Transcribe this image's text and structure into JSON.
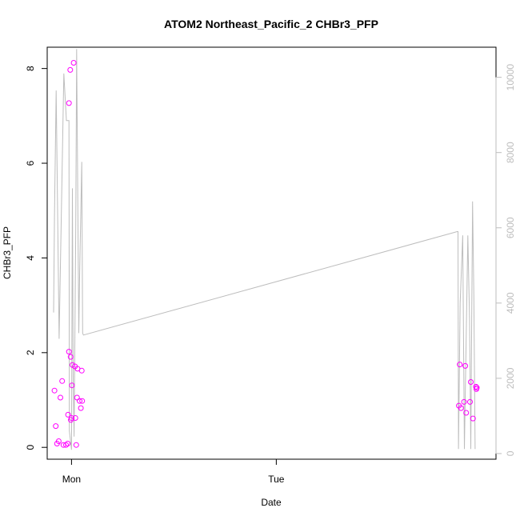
{
  "chart_data": {
    "type": "scatter",
    "title": "ATOM2 Northeast_Pacific_2 CHBr3_PFP",
    "xlabel": "Date",
    "ylabel": "CHBr3_PFP",
    "y2label": "",
    "x_axis": {
      "min_hours": -2.85,
      "max_hours": 49.75,
      "ticks": [
        {
          "label": "Mon",
          "hours": 0
        },
        {
          "label": "Tue",
          "hours": 24
        }
      ]
    },
    "y_axis": {
      "ylim": [
        -0.25,
        8.45
      ],
      "ticks": [
        {
          "label": "0",
          "value": 0
        },
        {
          "label": "2",
          "value": 2
        },
        {
          "label": "4",
          "value": 4
        },
        {
          "label": "6",
          "value": 6
        },
        {
          "label": "8",
          "value": 8
        }
      ]
    },
    "y2_axis": {
      "ylim": [
        -150,
        10800
      ],
      "ticks": [
        {
          "label": "0",
          "value": 0
        },
        {
          "label": "2000",
          "value": 2000
        },
        {
          "label": "4000",
          "value": 4000
        },
        {
          "label": "6000",
          "value": 6000
        },
        {
          "label": "8000",
          "value": 8000
        },
        {
          "label": "10000",
          "value": 10000
        }
      ]
    },
    "series": [
      {
        "type": "scatter",
        "axis": "left",
        "color": "#ff00ff",
        "marker": "open-circle",
        "points": [
          {
            "x": -2.0,
            "y": 1.2
          },
          {
            "x": -1.85,
            "y": 0.45
          },
          {
            "x": -1.7,
            "y": 0.08
          },
          {
            "x": -1.5,
            "y": 0.13
          },
          {
            "x": -1.3,
            "y": 1.05
          },
          {
            "x": -1.1,
            "y": 1.4
          },
          {
            "x": -0.95,
            "y": 0.05
          },
          {
            "x": -0.65,
            "y": 0.05
          },
          {
            "x": -0.45,
            "y": 0.08
          },
          {
            "x": -0.4,
            "y": 0.69
          },
          {
            "x": -0.3,
            "y": 2.02
          },
          {
            "x": -0.3,
            "y": 7.27
          },
          {
            "x": -0.15,
            "y": 7.97
          },
          {
            "x": -0.1,
            "y": 1.91
          },
          {
            "x": -0.08,
            "y": 0.58
          },
          {
            "x": 0.0,
            "y": 0.62
          },
          {
            "x": 0.05,
            "y": 1.31
          },
          {
            "x": 0.1,
            "y": 1.74
          },
          {
            "x": 0.25,
            "y": 8.12
          },
          {
            "x": 0.4,
            "y": 1.71
          },
          {
            "x": 0.45,
            "y": 0.62
          },
          {
            "x": 0.55,
            "y": 0.05
          },
          {
            "x": 0.65,
            "y": 1.05
          },
          {
            "x": 0.7,
            "y": 1.66
          },
          {
            "x": 0.95,
            "y": 0.98
          },
          {
            "x": 1.1,
            "y": 0.83
          },
          {
            "x": 1.2,
            "y": 1.62
          },
          {
            "x": 1.25,
            "y": 0.98
          },
          {
            "x": 45.4,
            "y": 0.88
          },
          {
            "x": 45.5,
            "y": 1.75
          },
          {
            "x": 45.65,
            "y": 0.83
          },
          {
            "x": 46.0,
            "y": 0.96
          },
          {
            "x": 46.15,
            "y": 1.72
          },
          {
            "x": 46.25,
            "y": 0.73
          },
          {
            "x": 46.7,
            "y": 0.96
          },
          {
            "x": 46.8,
            "y": 1.38
          },
          {
            "x": 47.05,
            "y": 0.61
          },
          {
            "x": 47.4,
            "y": 1.28
          },
          {
            "x": 47.45,
            "y": 1.23
          },
          {
            "x": 47.5,
            "y": 1.26
          }
        ]
      },
      {
        "type": "line",
        "axis": "right",
        "color": "#bdbdbd",
        "points": [
          {
            "x": -2.1,
            "y": 3750
          },
          {
            "x": -2.0,
            "y": 6300
          },
          {
            "x": -1.8,
            "y": 9650
          },
          {
            "x": -1.45,
            "y": 3050
          },
          {
            "x": -1.1,
            "y": 7600
          },
          {
            "x": -0.9,
            "y": 10100
          },
          {
            "x": -0.6,
            "y": 8850
          },
          {
            "x": -0.3,
            "y": 8850
          },
          {
            "x": -0.25,
            "y": 600
          },
          {
            "x": 0.0,
            "y": 100
          },
          {
            "x": 0.1,
            "y": 7050
          },
          {
            "x": 0.2,
            "y": 2000
          },
          {
            "x": 0.3,
            "y": 450
          },
          {
            "x": 0.5,
            "y": 6000
          },
          {
            "x": 0.6,
            "y": 10750
          },
          {
            "x": 0.85,
            "y": 3200
          },
          {
            "x": 0.95,
            "y": 4700
          },
          {
            "x": 1.2,
            "y": 7750
          },
          {
            "x": 1.3,
            "y": 3200
          },
          {
            "x": 1.4,
            "y": 3150
          },
          {
            "x": 45.2,
            "y": 5900
          },
          {
            "x": 45.3,
            "y": 5900
          },
          {
            "x": 45.35,
            "y": 120
          },
          {
            "x": 45.55,
            "y": 4000
          },
          {
            "x": 45.85,
            "y": 5800
          },
          {
            "x": 46.05,
            "y": 120
          },
          {
            "x": 46.45,
            "y": 5800
          },
          {
            "x": 46.65,
            "y": 3600
          },
          {
            "x": 46.8,
            "y": 120
          },
          {
            "x": 47.0,
            "y": 6700
          },
          {
            "x": 47.15,
            "y": 4200
          },
          {
            "x": 47.3,
            "y": 120
          }
        ]
      }
    ],
    "grid": false
  }
}
